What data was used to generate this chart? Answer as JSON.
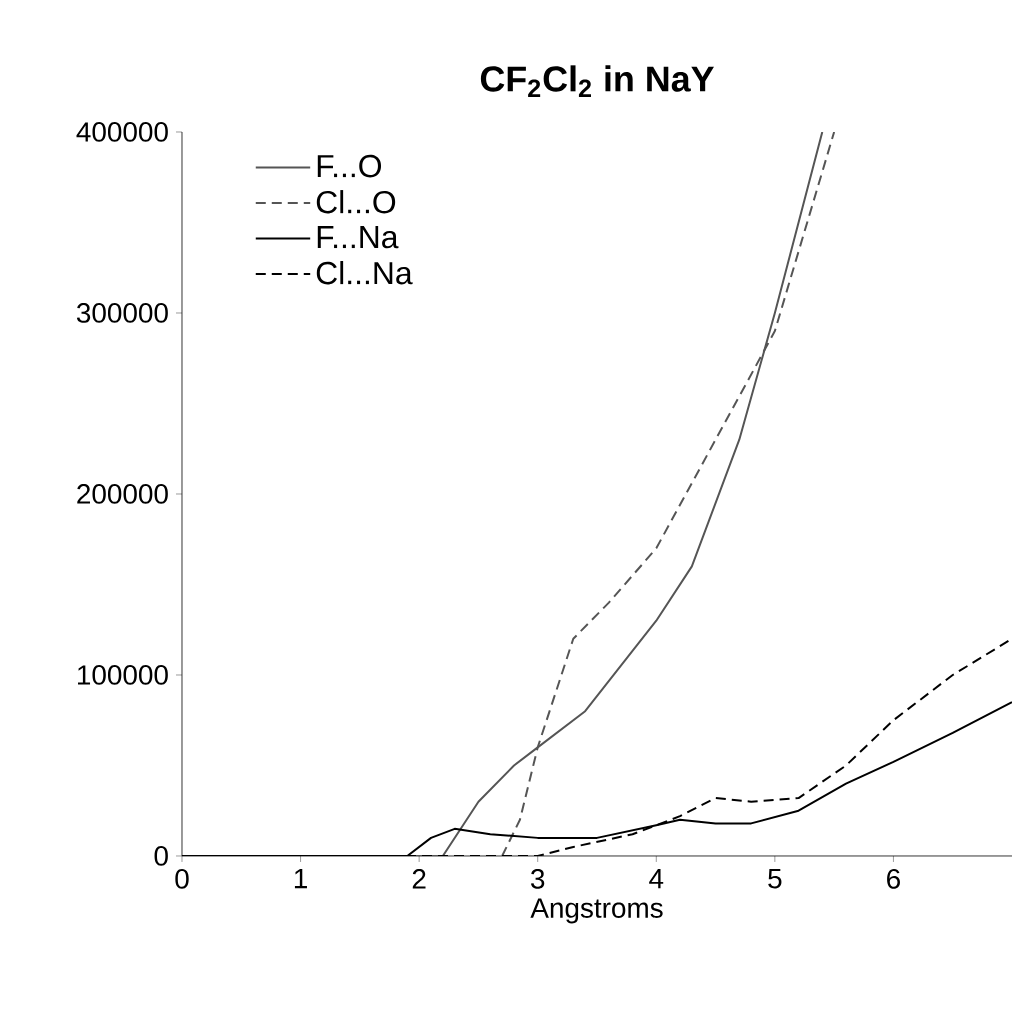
{
  "chart_data": {
    "type": "line",
    "title": "CF$_{2}$Cl$_{2}$ in NaY",
    "xlabel": "Angstroms",
    "xlim": [
      0,
      7
    ],
    "xticks": [
      0,
      1,
      2,
      3,
      4,
      5,
      6
    ],
    "ylim": [
      0,
      400000
    ],
    "yticks": [
      0,
      100000,
      200000,
      300000,
      400000
    ],
    "legend": "top left",
    "grid": false,
    "series": [
      {
        "name": "F...O",
        "color": "#555555",
        "line_style": "solid",
        "x": [
          0,
          1.9,
          2.2,
          2.5,
          2.8,
          3.0,
          3.4,
          4.0,
          4.3,
          4.7,
          5.0,
          5.4
        ],
        "values": [
          0,
          0,
          0,
          30000,
          50000,
          60000,
          80000,
          130000,
          160000,
          230000,
          300000,
          400000
        ]
      },
      {
        "name": "Cl...O",
        "color": "#555555",
        "line_style": "dashed",
        "x": [
          0,
          2.7,
          2.85,
          3.0,
          3.3,
          3.6,
          4.0,
          4.5,
          5.0,
          5.5
        ],
        "values": [
          0,
          0,
          20000,
          60000,
          120000,
          140000,
          170000,
          230000,
          290000,
          400000
        ]
      },
      {
        "name": "F...Na",
        "color": "#000000",
        "line_style": "solid",
        "x": [
          0,
          1.9,
          2.1,
          2.3,
          2.6,
          3.0,
          3.5,
          4.0,
          4.2,
          4.5,
          4.8,
          5.2,
          5.6,
          6.0,
          6.5,
          7.0
        ],
        "values": [
          0,
          0,
          10000,
          15000,
          12000,
          10000,
          10000,
          17000,
          20000,
          18000,
          18000,
          25000,
          40000,
          52000,
          68000,
          85000
        ]
      },
      {
        "name": "Cl...Na",
        "color": "#000000",
        "line_style": "dashed",
        "x": [
          0,
          3.0,
          3.3,
          3.8,
          4.2,
          4.5,
          4.8,
          5.2,
          5.6,
          6.0,
          6.5,
          7.0
        ],
        "values": [
          0,
          0,
          5000,
          12000,
          22000,
          32000,
          30000,
          32000,
          50000,
          75000,
          100000,
          120000
        ]
      }
    ]
  }
}
